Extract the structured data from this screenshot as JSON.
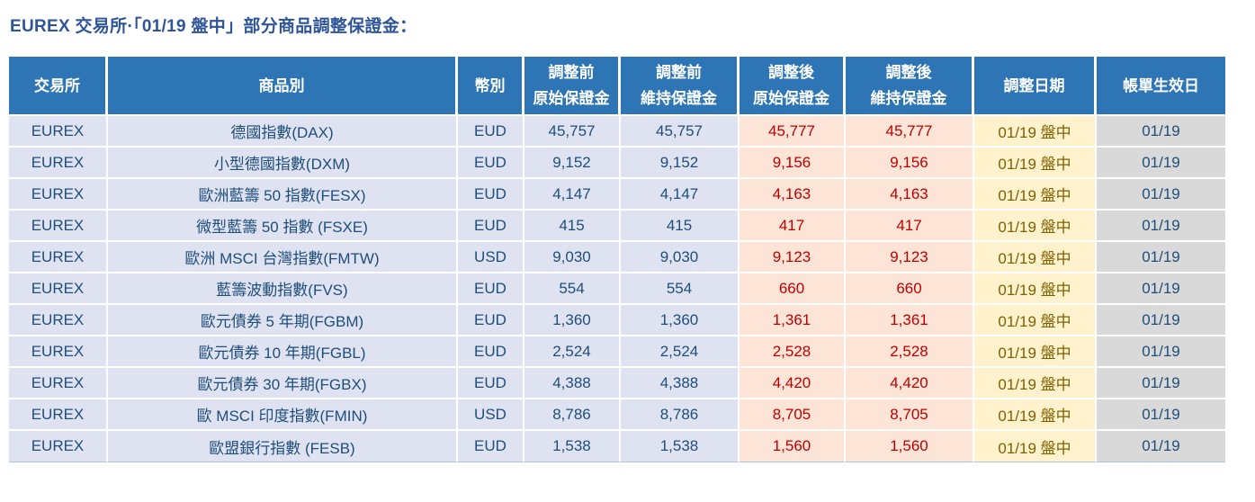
{
  "title": "EUREX 交易所·「01/19 盤中」部分商品調整保證金：",
  "table": {
    "headers": [
      {
        "line1": "交易所",
        "line2": ""
      },
      {
        "line1": "商品別",
        "line2": ""
      },
      {
        "line1": "幣別",
        "line2": ""
      },
      {
        "line1": "調整前",
        "line2": "原始保證金"
      },
      {
        "line1": "調整前",
        "line2": "維持保證金"
      },
      {
        "line1": "調整後",
        "line2": "原始保證金"
      },
      {
        "line1": "調整後",
        "line2": "維持保證金"
      },
      {
        "line1": "調整日期",
        "line2": ""
      },
      {
        "line1": "帳單生效日",
        "line2": ""
      }
    ],
    "rows": [
      [
        "EUREX",
        "德國指數(DAX)",
        "EUD",
        "45,757",
        "45,757",
        "45,777",
        "45,777",
        "01/19 盤中",
        "01/19"
      ],
      [
        "EUREX",
        "小型德國指數(DXM)",
        "EUD",
        "9,152",
        "9,152",
        "9,156",
        "9,156",
        "01/19 盤中",
        "01/19"
      ],
      [
        "EUREX",
        "歐洲藍籌 50 指數(FESX)",
        "EUD",
        "4,147",
        "4,147",
        "4,163",
        "4,163",
        "01/19 盤中",
        "01/19"
      ],
      [
        "EUREX",
        "微型藍籌 50 指數 (FSXE)",
        "EUD",
        "415",
        "415",
        "417",
        "417",
        "01/19 盤中",
        "01/19"
      ],
      [
        "EUREX",
        "歐洲 MSCI 台灣指數(FMTW)",
        "USD",
        "9,030",
        "9,030",
        "9,123",
        "9,123",
        "01/19 盤中",
        "01/19"
      ],
      [
        "EUREX",
        "藍籌波動指數(FVS)",
        "EUD",
        "554",
        "554",
        "660",
        "660",
        "01/19 盤中",
        "01/19"
      ],
      [
        "EUREX",
        "歐元債券 5 年期(FGBM)",
        "EUD",
        "1,360",
        "1,360",
        "1,361",
        "1,361",
        "01/19 盤中",
        "01/19"
      ],
      [
        "EUREX",
        "歐元債券 10 年期(FGBL)",
        "EUD",
        "2,524",
        "2,524",
        "2,528",
        "2,528",
        "01/19 盤中",
        "01/19"
      ],
      [
        "EUREX",
        "歐元債券 30 年期(FGBX)",
        "EUD",
        "4,388",
        "4,388",
        "4,420",
        "4,420",
        "01/19 盤中",
        "01/19"
      ],
      [
        "EUREX",
        "歐 MSCI 印度指數(FMIN)",
        "USD",
        "8,786",
        "8,786",
        "8,705",
        "8,705",
        "01/19 盤中",
        "01/19"
      ],
      [
        "EUREX",
        "歐盟銀行指數 (FESB)",
        "EUD",
        "1,538",
        "1,538",
        "1,560",
        "1,560",
        "01/19 盤中",
        "01/19"
      ]
    ]
  },
  "colors": {
    "title_color": "#2E5597",
    "header_bg": "#2E75B6",
    "pre_adjust_bg": "#DEE2F1",
    "post_adjust_bg": "#FCE4D6",
    "adjust_date_bg": "#FFF2CC",
    "effective_bg": "#D9D9D9",
    "text_navy": "#1F4E79",
    "text_red": "#C00000",
    "text_olive": "#7F6000"
  }
}
